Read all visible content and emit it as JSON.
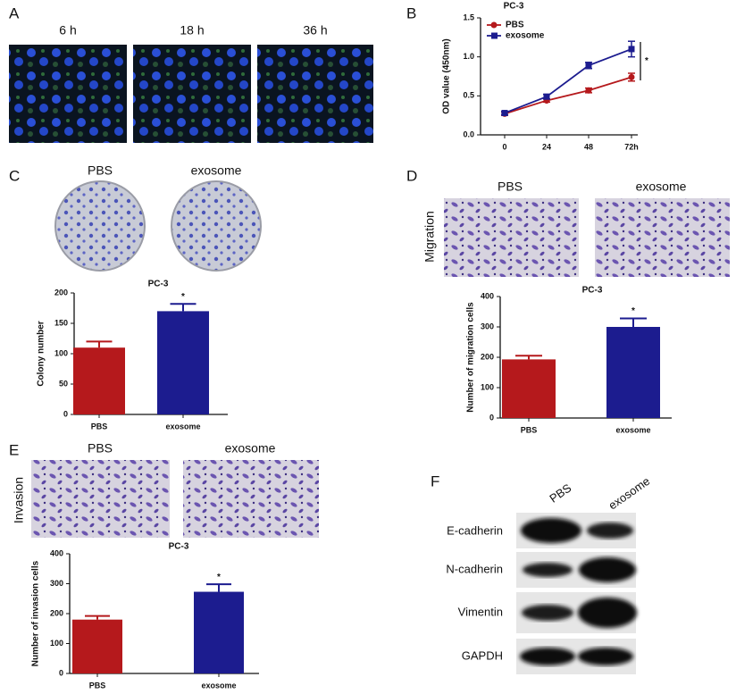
{
  "panel_labels": [
    "A",
    "B",
    "C",
    "D",
    "E",
    "F"
  ],
  "panel_a": {
    "time_labels": [
      "6 h",
      "18 h",
      "36 h"
    ]
  },
  "panel_c": {
    "image_labels": [
      "PBS",
      "exosome"
    ]
  },
  "panel_d": {
    "row_label": "Migration",
    "image_labels": [
      "PBS",
      "exosome"
    ]
  },
  "panel_e": {
    "row_label": "Invasion",
    "image_labels": [
      "PBS",
      "exosome"
    ]
  },
  "panel_f": {
    "columns": [
      "PBS",
      "exosome"
    ],
    "rows": [
      "E-cadherin",
      "N-cadherin",
      "Vimentin",
      "GAPDH"
    ]
  },
  "chart_data": [
    {
      "type": "line",
      "title": "PC-3",
      "y_label": "OD value (450nm)",
      "annotation": "*",
      "categories": [
        "0",
        "24",
        "48",
        "72h"
      ],
      "series": [
        {
          "name": "PBS",
          "color": "#b5191c",
          "marker": "circle",
          "values": [
            0.27,
            0.44,
            0.57,
            0.74
          ],
          "errors": [
            0.02,
            0.02,
            0.03,
            0.05
          ]
        },
        {
          "name": "exosome",
          "color": "#1c1c8f",
          "marker": "square",
          "values": [
            0.28,
            0.49,
            0.89,
            1.1
          ],
          "errors": [
            0.02,
            0.03,
            0.04,
            0.1
          ]
        }
      ],
      "ylim": [
        0,
        1.5
      ],
      "yticks": [
        {
          "value": 0,
          "label": "0.0"
        },
        {
          "value": 0.5,
          "label": "0.5"
        },
        {
          "value": 1,
          "label": "1.0"
        },
        {
          "value": 1.5,
          "label": "1.5"
        }
      ]
    },
    {
      "type": "bar",
      "title": "PC-3",
      "y_label": "Colony number",
      "annotation": "*",
      "categories": [
        "PBS",
        "exosome"
      ],
      "values": [
        110,
        170
      ],
      "errors": [
        10,
        12
      ],
      "colors": [
        "#b5191c",
        "#1c1c8f"
      ],
      "ylim": [
        0,
        200
      ],
      "yticks": [
        0,
        50,
        100,
        150,
        200
      ]
    },
    {
      "type": "bar",
      "title": "PC-3",
      "y_label": "Number of migration cells",
      "annotation": "*",
      "categories": [
        "PBS",
        "exosome"
      ],
      "values": [
        193,
        300
      ],
      "errors": [
        12,
        28
      ],
      "colors": [
        "#b5191c",
        "#1c1c8f"
      ],
      "ylim": [
        0,
        400
      ],
      "yticks": [
        0,
        100,
        200,
        300,
        400
      ]
    },
    {
      "type": "bar",
      "title": "PC-3",
      "y_label": "Number of invasion cells",
      "annotation": "*",
      "categories": [
        "PBS",
        "exosome"
      ],
      "values": [
        180,
        273
      ],
      "errors": [
        12,
        25
      ],
      "colors": [
        "#b5191c",
        "#1c1c8f"
      ],
      "ylim": [
        0,
        400
      ],
      "yticks": [
        0,
        100,
        200,
        300,
        400
      ]
    }
  ]
}
